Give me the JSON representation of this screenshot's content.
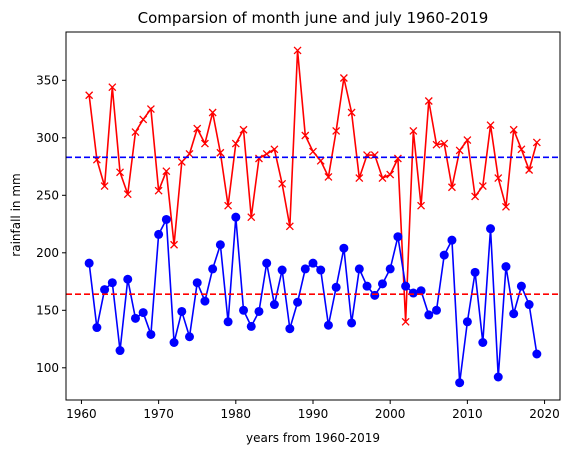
{
  "chart_data": {
    "type": "line",
    "title": "Comparsion of month june and july 1960-2019",
    "xlabel": "years from 1960-2019",
    "ylabel": "rainfall in  mm",
    "xlim": [
      1958,
      2022
    ],
    "ylim": [
      72,
      392
    ],
    "xticks": [
      1960,
      1970,
      1980,
      1990,
      2000,
      2010,
      2020
    ],
    "yticks": [
      100,
      150,
      200,
      250,
      300,
      350
    ],
    "grid": false,
    "legend": "none",
    "x": [
      1961,
      1962,
      1963,
      1964,
      1965,
      1966,
      1967,
      1968,
      1969,
      1970,
      1971,
      1972,
      1973,
      1974,
      1975,
      1976,
      1977,
      1978,
      1979,
      1980,
      1981,
      1982,
      1983,
      1984,
      1985,
      1986,
      1987,
      1988,
      1989,
      1990,
      1991,
      1992,
      1993,
      1994,
      1995,
      1996,
      1997,
      1998,
      1999,
      2000,
      2001,
      2002,
      2003,
      2004,
      2005,
      2006,
      2007,
      2008,
      2009,
      2010,
      2011,
      2012,
      2013,
      2014,
      2015,
      2016,
      2017,
      2018,
      2019
    ],
    "series": [
      {
        "color": "#ff0000",
        "marker": "x",
        "values": [
          337,
          281,
          258,
          344,
          270,
          251,
          305,
          316,
          325,
          254,
          271,
          207,
          279,
          286,
          308,
          295,
          322,
          287,
          241,
          295,
          307,
          231,
          282,
          286,
          290,
          260,
          223,
          376,
          302,
          288,
          280,
          266,
          306,
          352,
          322,
          265,
          285,
          285,
          265,
          268,
          282,
          140,
          306,
          241,
          332,
          294,
          295,
          257,
          289,
          298,
          249,
          258,
          311,
          265,
          240,
          307,
          290,
          272,
          296
        ]
      },
      {
        "color": "#0000ff",
        "marker": "o",
        "values": [
          191,
          135,
          168,
          174,
          115,
          177,
          143,
          148,
          129,
          216,
          229,
          122,
          149,
          127,
          174,
          158,
          186,
          207,
          140,
          231,
          150,
          136,
          149,
          191,
          155,
          185,
          134,
          157,
          186,
          191,
          185,
          137,
          170,
          204,
          139,
          186,
          171,
          163,
          173,
          186,
          214,
          171,
          165,
          167,
          146,
          150,
          198,
          211,
          87,
          140,
          183,
          122,
          221,
          92,
          188,
          147,
          171,
          155,
          112
        ]
      }
    ],
    "hlines": [
      {
        "y": 283,
        "color": "#0000ff",
        "style": "dashed"
      },
      {
        "y": 164,
        "color": "#ff0000",
        "style": "dashed"
      }
    ]
  }
}
